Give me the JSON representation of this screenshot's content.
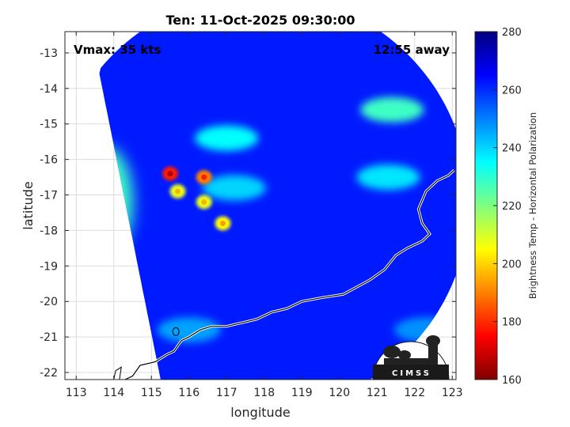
{
  "chart_data": {
    "type": "heatmap",
    "title": "Ten: 11-Oct-2025 09:30:00",
    "xlabel": "longitude",
    "ylabel": "latitude",
    "xlim": [
      112.7,
      123.1
    ],
    "ylim": [
      -22.2,
      -12.4
    ],
    "x_ticks": [
      "113",
      "114",
      "115",
      "116",
      "117",
      "118",
      "119",
      "120",
      "121",
      "122",
      "123"
    ],
    "y_ticks": [
      "-13",
      "-14",
      "-15",
      "-16",
      "-17",
      "-18",
      "-19",
      "-20",
      "-21",
      "-22"
    ],
    "grid": true,
    "annotations": {
      "vmax": "Vmax: 35 kts",
      "distance": "12:55 away"
    },
    "colorbar": {
      "label": "Brightness Temp - Horizontal Polarization",
      "range": [
        160,
        280
      ],
      "ticks": [
        "160",
        "180",
        "200",
        "220",
        "240",
        "260",
        "280"
      ]
    },
    "swath": {
      "center_lon": 117.9,
      "center_lat": -17.2,
      "radius_deg": 5.55,
      "west_edge_lon": 114.3
    },
    "features": [
      {
        "kind": "background",
        "lon": 118.0,
        "lat": -17.3,
        "value": 262
      },
      {
        "kind": "warm-edge",
        "lon": 113.2,
        "lat": -18.2,
        "value": 212
      },
      {
        "kind": "warm-edge",
        "lon": 113.8,
        "lat": -17.2,
        "value": 228
      },
      {
        "kind": "cell",
        "lon": 115.5,
        "lat": -16.4,
        "value": 178
      },
      {
        "kind": "cell",
        "lon": 116.4,
        "lat": -16.5,
        "value": 190
      },
      {
        "kind": "cell",
        "lon": 115.7,
        "lat": -16.9,
        "value": 208
      },
      {
        "kind": "cell",
        "lon": 116.4,
        "lat": -17.2,
        "value": 208
      },
      {
        "kind": "cell",
        "lon": 116.9,
        "lat": -17.8,
        "value": 205
      },
      {
        "kind": "band",
        "lon": 117.0,
        "lat": -15.4,
        "value": 235
      },
      {
        "kind": "band",
        "lon": 121.4,
        "lat": -14.6,
        "value": 228
      },
      {
        "kind": "band",
        "lon": 117.2,
        "lat": -16.8,
        "value": 240
      },
      {
        "kind": "band",
        "lon": 121.3,
        "lat": -16.5,
        "value": 238
      },
      {
        "kind": "band",
        "lon": 122.3,
        "lat": -20.8,
        "value": 248
      },
      {
        "kind": "band",
        "lon": 116.0,
        "lat": -20.8,
        "value": 246
      }
    ],
    "coastline": [
      [
        123.05,
        -16.3
      ],
      [
        122.9,
        -16.45
      ],
      [
        122.6,
        -16.6
      ],
      [
        122.3,
        -16.9
      ],
      [
        122.1,
        -17.4
      ],
      [
        122.2,
        -17.8
      ],
      [
        122.4,
        -18.1
      ],
      [
        122.2,
        -18.3
      ],
      [
        121.8,
        -18.5
      ],
      [
        121.5,
        -18.7
      ],
      [
        121.2,
        -19.1
      ],
      [
        120.8,
        -19.4
      ],
      [
        120.1,
        -19.8
      ],
      [
        119.5,
        -19.9
      ],
      [
        119.0,
        -20.0
      ],
      [
        118.6,
        -20.2
      ],
      [
        118.2,
        -20.3
      ],
      [
        117.8,
        -20.5
      ],
      [
        117.4,
        -20.6
      ],
      [
        117.0,
        -20.7
      ],
      [
        116.6,
        -20.7
      ],
      [
        116.3,
        -20.8
      ],
      [
        116.0,
        -21.0
      ],
      [
        115.8,
        -21.1
      ],
      [
        115.6,
        -21.4
      ],
      [
        115.4,
        -21.5
      ],
      [
        115.1,
        -21.7
      ],
      [
        114.7,
        -21.8
      ],
      [
        114.5,
        -22.1
      ],
      [
        114.3,
        -22.2
      ]
    ]
  },
  "logo": {
    "text": "CIMSS"
  }
}
